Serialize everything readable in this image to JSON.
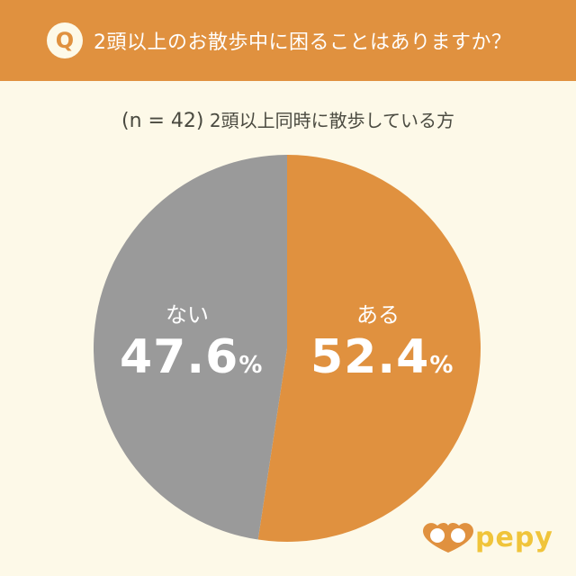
{
  "header": {
    "badge": "Q",
    "question": "2頭以上のお散歩中に困ることはありますか？"
  },
  "subtitle": {
    "sample": "(n = 42)",
    "description": "2頭以上同時に散歩している方"
  },
  "chart_data": {
    "type": "pie",
    "title": "2頭以上のお散歩中に困ることはありますか？",
    "subtitle": "(n = 42) 2頭以上同時に散歩している方",
    "categories": [
      "ある",
      "ない"
    ],
    "values": [
      52.4,
      47.6
    ],
    "unit": "%",
    "colors": [
      "#e0913f",
      "#9a9a9a"
    ],
    "start_angle": "top, clockwise",
    "legend": "none (labels on slices)"
  },
  "labels": [
    {
      "category": "ある",
      "value": "52.4",
      "pct": "%"
    },
    {
      "category": "ない",
      "value": "47.6",
      "pct": "%"
    }
  ],
  "logo": {
    "text": "pepy"
  },
  "colors": {
    "accent": "#e0913f",
    "gray": "#9a9a9a",
    "background": "#fdf9e8",
    "logo_yellow": "#f0c43a"
  }
}
